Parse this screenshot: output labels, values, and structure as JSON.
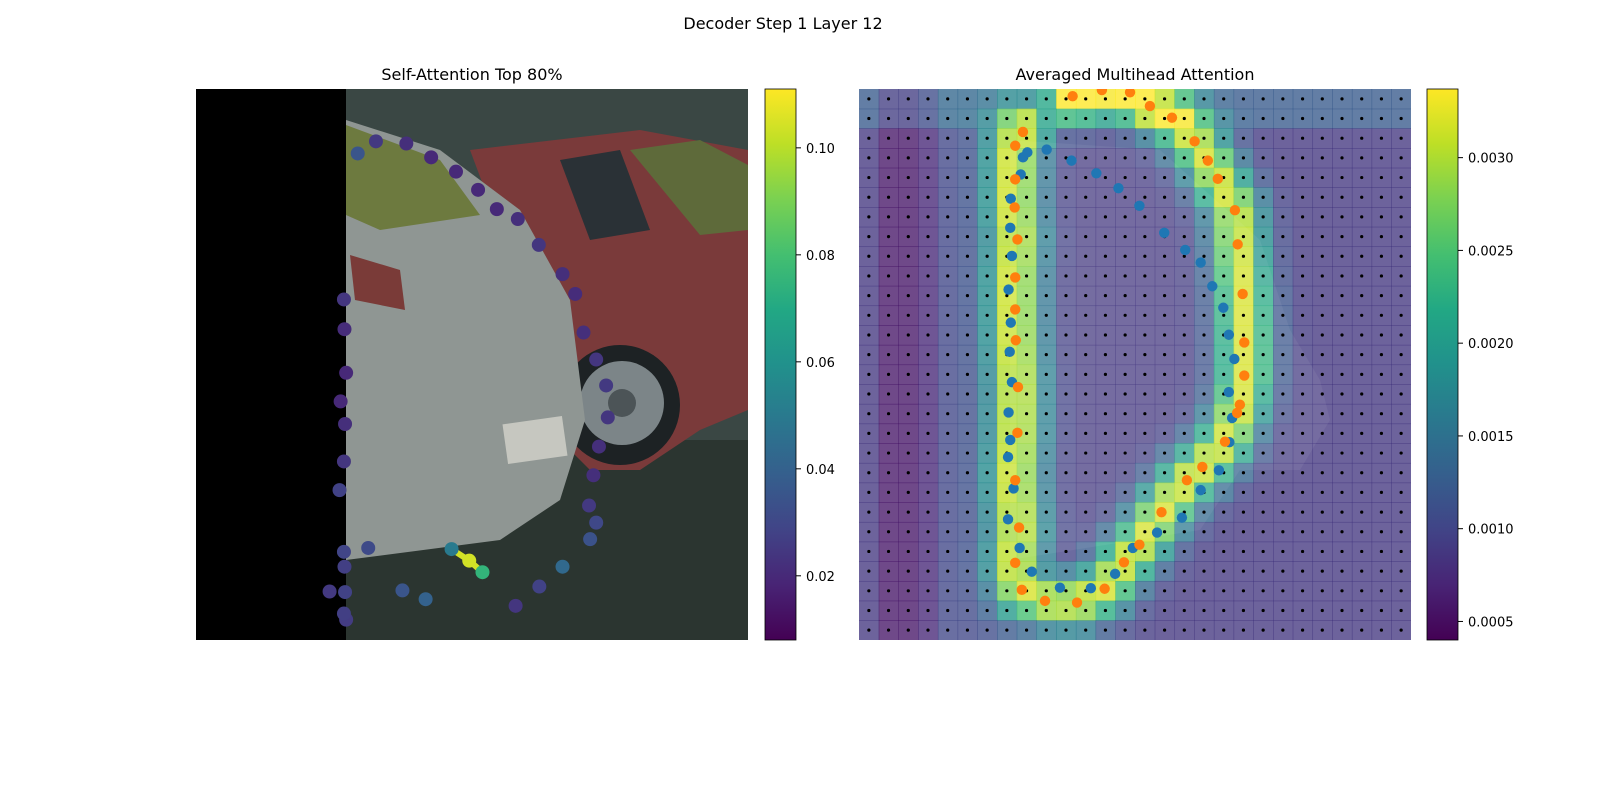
{
  "figure": {
    "suptitle": "Decoder Step 1 Layer 12"
  },
  "chart_data": [
    {
      "type": "scatter",
      "title": "Self-Attention Top 80%",
      "background": "photo: grey hatchback and red car in a parking lot, black band on left third",
      "xlim": [
        0,
        1
      ],
      "ylim": [
        0,
        1
      ],
      "colorbar": {
        "cmap": "viridis",
        "range": [
          0.008,
          0.111
        ],
        "ticks": [
          0.02,
          0.04,
          0.06,
          0.08,
          0.1
        ],
        "tick_labels": [
          "0.02",
          "0.04",
          "0.06",
          "0.08",
          "0.10"
        ]
      },
      "points": {
        "x": [
          0.293,
          0.326,
          0.381,
          0.426,
          0.471,
          0.511,
          0.545,
          0.583,
          0.621,
          0.664,
          0.687,
          0.702,
          0.725,
          0.743,
          0.746,
          0.73,
          0.72,
          0.712,
          0.725,
          0.714,
          0.664,
          0.622,
          0.579,
          0.519,
          0.463,
          0.416,
          0.374,
          0.312,
          0.269,
          0.242,
          0.272,
          0.268,
          0.27,
          0.268,
          0.26,
          0.268,
          0.27,
          0.262,
          0.272,
          0.269,
          0.268
        ],
        "y": [
          0.883,
          0.905,
          0.901,
          0.876,
          0.85,
          0.817,
          0.782,
          0.764,
          0.717,
          0.664,
          0.628,
          0.558,
          0.509,
          0.462,
          0.404,
          0.351,
          0.299,
          0.244,
          0.213,
          0.183,
          0.133,
          0.097,
          0.062,
          0.123,
          0.165,
          0.074,
          0.09,
          0.167,
          0.133,
          0.088,
          0.037,
          0.048,
          0.087,
          0.16,
          0.272,
          0.324,
          0.392,
          0.433,
          0.485,
          0.564,
          0.618
        ],
        "values": [
          0.035,
          0.025,
          0.022,
          0.02,
          0.02,
          0.02,
          0.02,
          0.022,
          0.024,
          0.022,
          0.021,
          0.022,
          0.024,
          0.025,
          0.024,
          0.022,
          0.022,
          0.025,
          0.03,
          0.034,
          0.043,
          0.028,
          0.024,
          0.075,
          0.05,
          0.04,
          0.035,
          0.031,
          0.027,
          0.025,
          0.026,
          0.027,
          0.028,
          0.029,
          0.028,
          0.024,
          0.022,
          0.02,
          0.02,
          0.021,
          0.024
        ],
        "highlight": {
          "x": 0.495,
          "y": 0.144,
          "value": 0.104
        }
      }
    },
    {
      "type": "heatmap",
      "title": "Averaged Multihead Attention",
      "background": "dimmed photo of the same scene",
      "grid_size": [
        28,
        28
      ],
      "colorbar": {
        "cmap": "viridis",
        "range": [
          0.0004,
          0.00337
        ],
        "ticks": [
          0.0005,
          0.001,
          0.0015,
          0.002,
          0.0025,
          0.003
        ],
        "tick_labels": [
          "0.0005",
          "0.0010",
          "0.0015",
          "0.0020",
          "0.0025",
          "0.0030"
        ]
      },
      "series": [
        {
          "color": "#1f77b4",
          "role": "reference polygon"
        },
        {
          "color": "#ff7f0e",
          "role": "predicted polygon"
        }
      ]
    }
  ]
}
